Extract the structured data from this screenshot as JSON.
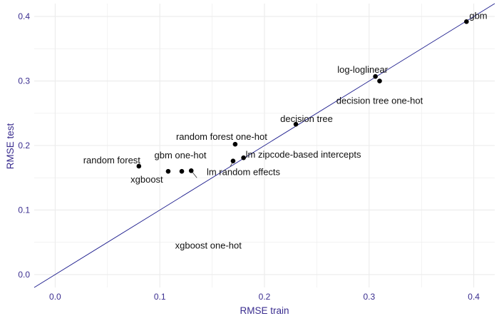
{
  "chart_data": {
    "type": "scatter",
    "xlabel": "RMSE train",
    "ylabel": "RMSE test",
    "xlim": [
      -0.02,
      0.42
    ],
    "ylim": [
      -0.02,
      0.42
    ],
    "x_ticks": [
      0.0,
      0.1,
      0.2,
      0.3,
      0.4
    ],
    "y_ticks": [
      0.0,
      0.1,
      0.2,
      0.3,
      0.4
    ],
    "x_tick_labels": [
      "0.0",
      "0.1",
      "0.2",
      "0.3",
      "0.4"
    ],
    "y_tick_labels": [
      "0.0",
      "0.1",
      "0.2",
      "0.3",
      "0.4"
    ],
    "grid": true,
    "reference_line": {
      "slope": 1,
      "intercept": 0,
      "color": "#1a1a8c"
    },
    "points": [
      {
        "label": "gbm",
        "x": 0.393,
        "y": 0.392
      },
      {
        "label": "log-loglinear",
        "x": 0.306,
        "y": 0.307
      },
      {
        "label": "decision tree one-hot",
        "x": 0.31,
        "y": 0.3
      },
      {
        "label": "decision tree",
        "x": 0.23,
        "y": 0.233
      },
      {
        "label": "random forest one-hot",
        "x": 0.172,
        "y": 0.202
      },
      {
        "label": "lm zipcode-based intercepts",
        "x": 0.18,
        "y": 0.181
      },
      {
        "label": "lm random effects",
        "x": 0.17,
        "y": 0.176
      },
      {
        "label": "gbm one-hot",
        "x": 0.121,
        "y": 0.16
      },
      {
        "label": "xgboost one-hot",
        "x": 0.13,
        "y": 0.161
      },
      {
        "label": "random forest",
        "x": 0.08,
        "y": 0.168
      },
      {
        "label": "xgboost",
        "x": 0.108,
        "y": 0.16
      }
    ],
    "colors": {
      "point": "#000000",
      "tick_label": "#3a2d8f",
      "grid": "#ebebeb",
      "line": "#1a1a8c"
    }
  }
}
